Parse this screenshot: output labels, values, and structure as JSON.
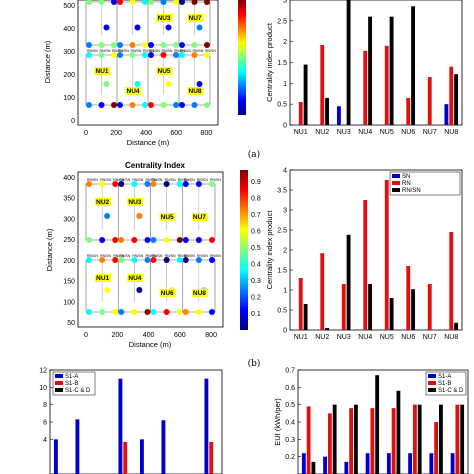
{
  "panel_labels": [
    "(a)",
    "(b)"
  ],
  "colormap": {
    "stops": [
      "#00007f",
      "#0000ff",
      "#007fff",
      "#00ffff",
      "#7fff7f",
      "#ffff00",
      "#ff7f00",
      "#ff0000",
      "#7f0000"
    ],
    "ticks_top": [
      "0.9",
      "0.8",
      "0.7",
      "0.6",
      "0.5",
      "0.4",
      "0.3",
      "0.2",
      "0.1"
    ]
  },
  "network_text": {
    "b_title": "Centrality Index",
    "a_node_labels": [
      "NU3",
      "NU7",
      "NU1",
      "NU5",
      "NU4",
      "NU8"
    ],
    "b_node_labels": [
      "NU2",
      "NU5",
      "NU3",
      "NU7",
      "NU1",
      "NU6",
      "NU4",
      "NU8"
    ],
    "small_label": "RN/SN"
  },
  "chart_data": [
    {
      "id": "network-a",
      "type": "scatter",
      "xlabel": "Distance (m)",
      "ylabel": "Distance (m)",
      "xticks": [
        "0",
        "200",
        "400",
        "600",
        "800"
      ],
      "yticks": [
        "500",
        "400",
        "300",
        "200",
        "100",
        "0"
      ]
    },
    {
      "id": "bar-a",
      "type": "bar",
      "categories": [
        "NU1",
        "NU2",
        "NU3",
        "NU4",
        "NU5",
        "NU6",
        "NU7",
        "NU8"
      ],
      "ylabel": "Centrality index product",
      "ylim": [
        0,
        3
      ],
      "yticks": [
        "0",
        "0.5",
        "1",
        "1.5",
        "2",
        "2.5",
        "3"
      ],
      "series": [
        {
          "color": "#0000cc",
          "values": [
            0,
            0,
            0.45,
            0,
            0,
            0,
            0,
            0.5
          ]
        },
        {
          "color": "#dd1111",
          "values": [
            0.55,
            1.92,
            0,
            1.78,
            1.9,
            0.65,
            1.15,
            1.4
          ]
        },
        {
          "color": "#000000",
          "values": [
            1.45,
            0.65,
            3.0,
            2.6,
            2.6,
            2.85,
            0,
            1.22
          ]
        }
      ]
    },
    {
      "id": "network-b",
      "type": "scatter",
      "title": "Centrality Index",
      "xlabel": "Distance (m)",
      "ylabel": "Distance (m)",
      "xticks": [
        "0",
        "200",
        "400",
        "600",
        "800"
      ],
      "yticks": [
        "400",
        "350",
        "300",
        "250",
        "200",
        "150",
        "100",
        "50"
      ]
    },
    {
      "id": "bar-b",
      "type": "bar",
      "categories": [
        "NU1",
        "NU2",
        "NU3",
        "NU4",
        "NU5",
        "NU6",
        "NU7",
        "NU8"
      ],
      "ylabel": "Centrality index product",
      "ylim": [
        0,
        4
      ],
      "yticks": [
        "0",
        "0.5",
        "1",
        "1.5",
        "2",
        "2.5",
        "3",
        "3.5",
        "4"
      ],
      "legend": [
        "SN",
        "RN",
        "RN/SN"
      ],
      "legend_position": "top-right",
      "series": [
        {
          "name": "SN",
          "color": "#0000cc",
          "values": [
            0,
            0,
            0,
            0,
            0,
            0,
            0,
            0
          ]
        },
        {
          "name": "RN",
          "color": "#dd1111",
          "values": [
            1.3,
            1.92,
            1.15,
            3.25,
            3.75,
            1.6,
            1.15,
            2.45
          ]
        },
        {
          "name": "RN/SN",
          "color": "#000000",
          "values": [
            0.65,
            0.05,
            2.38,
            1.15,
            0.8,
            1.02,
            0,
            0.18
          ]
        }
      ]
    },
    {
      "id": "bar-c",
      "type": "bar",
      "ylim": [
        0,
        12
      ],
      "yticks": [
        "12",
        "10",
        "8",
        "6",
        "4"
      ],
      "legend": [
        "S1-A",
        "S1-B",
        "S1-C & D"
      ],
      "legend_position": "top-left",
      "series": [
        {
          "name": "S1-A",
          "color": "#0000cc",
          "values": [
            4,
            6.3,
            0,
            11,
            4,
            6.2,
            0,
            11
          ]
        },
        {
          "name": "S1-B",
          "color": "#dd1111",
          "values": [
            0,
            0,
            0,
            3.7,
            0,
            0,
            0,
            3.7
          ]
        },
        {
          "name": "S1-C & D",
          "color": "#000000",
          "values": [
            0,
            0,
            0,
            0,
            0,
            0,
            0,
            0
          ]
        }
      ]
    },
    {
      "id": "bar-d",
      "type": "bar",
      "ylabel": "EUI (kWh/per)",
      "ylim": [
        0.1,
        0.7
      ],
      "yticks": [
        "0.7",
        "0.6",
        "0.5",
        "0.4",
        "0.3",
        "0.2"
      ],
      "legend": [
        "S1-A",
        "S1-B",
        "S1-C & D"
      ],
      "legend_position": "top-right",
      "series": [
        {
          "name": "S1-A",
          "color": "#0000cc",
          "values": [
            0.22,
            0.2,
            0.17,
            0.22,
            0.22,
            0.22,
            0.22,
            0.22
          ]
        },
        {
          "name": "S1-B",
          "color": "#dd1111",
          "values": [
            0.49,
            0.45,
            0.48,
            0.48,
            0.48,
            0.5,
            0.4,
            0.5
          ]
        },
        {
          "name": "S1-C & D",
          "color": "#000000",
          "values": [
            0.17,
            0.5,
            0.5,
            0.67,
            0.58,
            0.5,
            0.5,
            0.5
          ]
        }
      ]
    }
  ]
}
